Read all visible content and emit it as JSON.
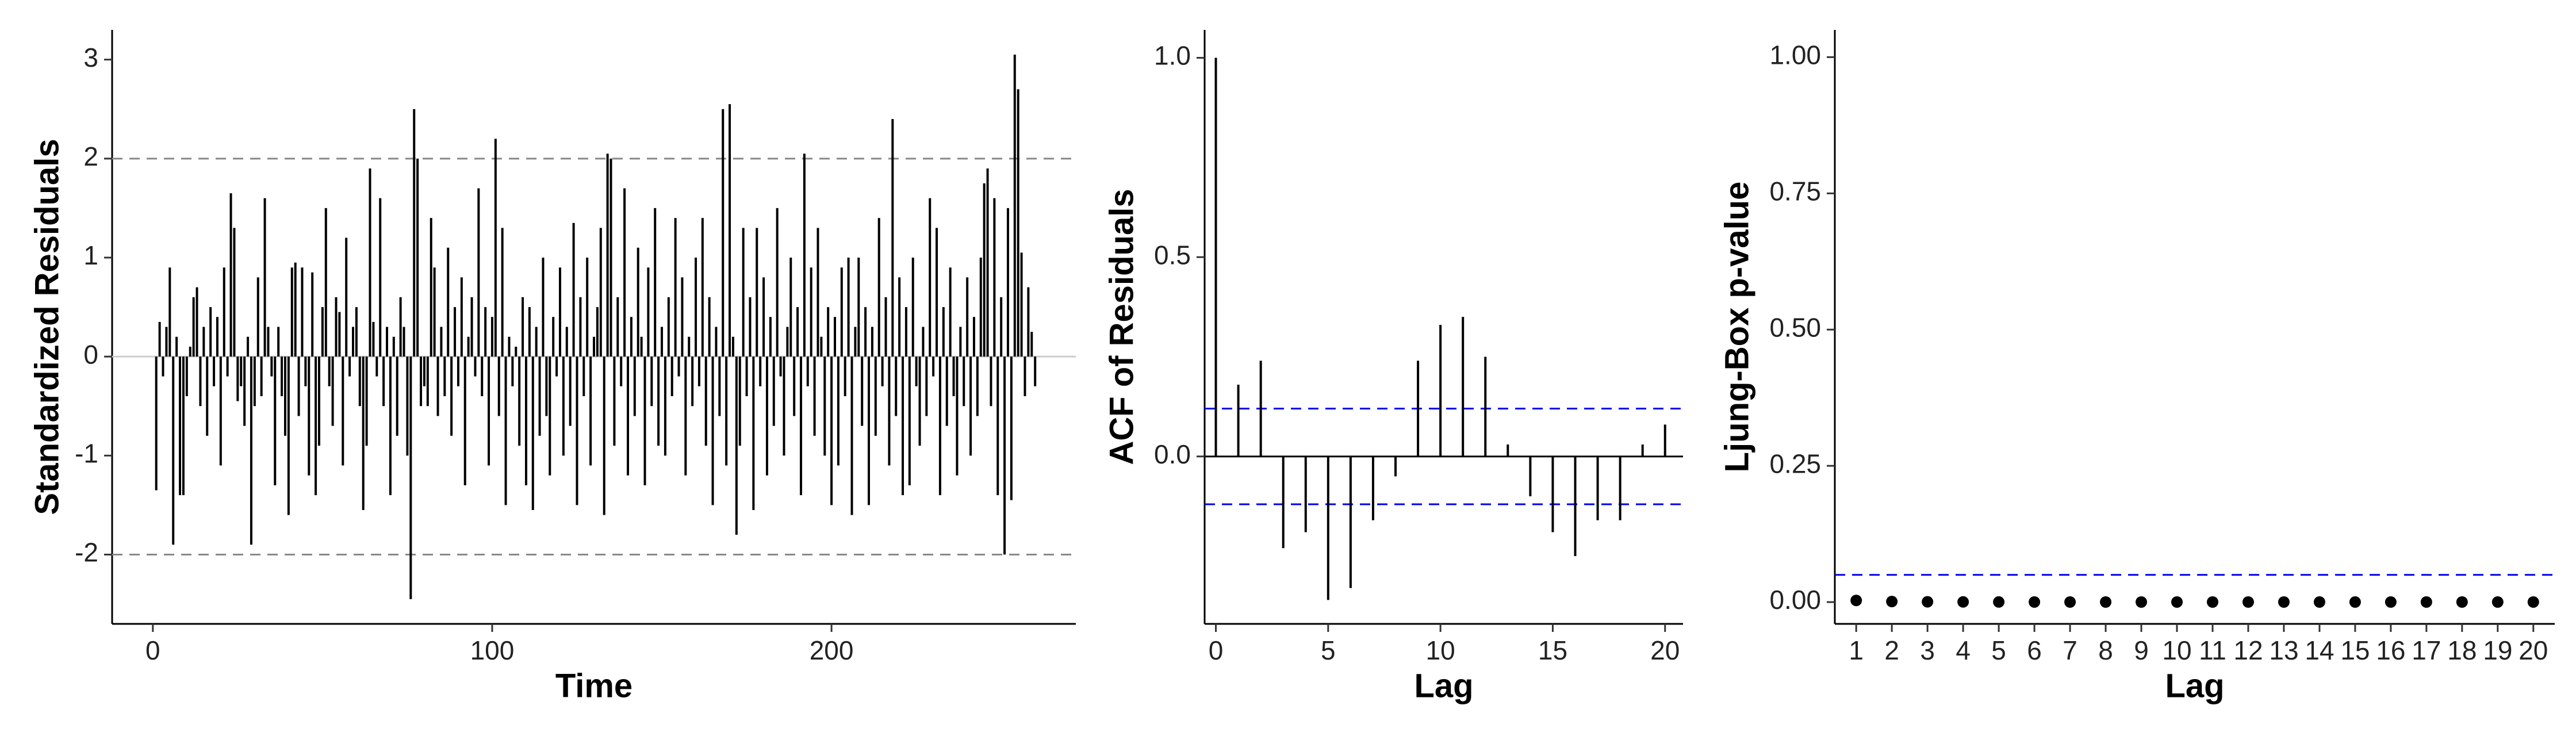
{
  "chart_data": [
    {
      "type": "needle",
      "x_label": "Time",
      "y_label": "Standardized Residuals",
      "x": [
        1,
        2,
        3,
        4,
        5,
        6,
        7,
        8,
        9,
        10,
        11,
        12,
        13,
        14,
        15,
        16,
        17,
        18,
        19,
        20,
        21,
        22,
        23,
        24,
        25,
        26,
        27,
        28,
        29,
        30,
        31,
        32,
        33,
        34,
        35,
        36,
        37,
        38,
        39,
        40,
        41,
        42,
        43,
        44,
        45,
        46,
        47,
        48,
        49,
        50,
        51,
        52,
        53,
        54,
        55,
        56,
        57,
        58,
        59,
        60,
        61,
        62,
        63,
        64,
        65,
        66,
        67,
        68,
        69,
        70,
        71,
        72,
        73,
        74,
        75,
        76,
        77,
        78,
        79,
        80,
        81,
        82,
        83,
        84,
        85,
        86,
        87,
        88,
        89,
        90,
        91,
        92,
        93,
        94,
        95,
        96,
        97,
        98,
        99,
        100,
        101,
        102,
        103,
        104,
        105,
        106,
        107,
        108,
        109,
        110,
        111,
        112,
        113,
        114,
        115,
        116,
        117,
        118,
        119,
        120,
        121,
        122,
        123,
        124,
        125,
        126,
        127,
        128,
        129,
        130,
        131,
        132,
        133,
        134,
        135,
        136,
        137,
        138,
        139,
        140,
        141,
        142,
        143,
        144,
        145,
        146,
        147,
        148,
        149,
        150,
        151,
        152,
        153,
        154,
        155,
        156,
        157,
        158,
        159,
        160,
        161,
        162,
        163,
        164,
        165,
        166,
        167,
        168,
        169,
        170,
        171,
        172,
        173,
        174,
        175,
        176,
        177,
        178,
        179,
        180,
        181,
        182,
        183,
        184,
        185,
        186,
        187,
        188,
        189,
        190,
        191,
        192,
        193,
        194,
        195,
        196,
        197,
        198,
        199,
        200,
        201,
        202,
        203,
        204,
        205,
        206,
        207,
        208,
        209,
        210,
        211,
        212,
        213,
        214,
        215,
        216,
        217,
        218,
        219,
        220,
        221,
        222,
        223,
        224,
        225,
        226,
        227,
        228,
        229,
        230,
        231,
        232,
        233,
        234,
        235,
        236,
        237,
        238,
        239,
        240,
        241,
        242,
        243,
        244,
        245,
        246,
        247,
        248,
        249,
        250,
        251,
        252,
        253,
        254,
        255,
        256,
        257,
        258,
        259,
        260
      ],
      "values": [
        -1.35,
        0.35,
        -0.2,
        0.3,
        0.9,
        -1.9,
        0.2,
        -1.4,
        -1.4,
        -0.4,
        0.1,
        0.6,
        0.7,
        -0.5,
        0.3,
        -0.8,
        0.5,
        -0.3,
        0.4,
        -1.1,
        0.9,
        -0.2,
        1.65,
        1.3,
        -0.45,
        -0.3,
        -0.7,
        0.2,
        -1.9,
        -0.5,
        0.8,
        -0.4,
        1.6,
        0.3,
        -0.2,
        -1.3,
        0.3,
        -0.4,
        -0.8,
        -1.6,
        0.9,
        0.95,
        -0.6,
        0.9,
        -0.3,
        -1.2,
        0.85,
        -1.4,
        -0.9,
        0.5,
        1.5,
        -0.3,
        -0.7,
        0.6,
        0.45,
        -1.1,
        1.2,
        -0.2,
        0.3,
        0.5,
        -0.5,
        -1.55,
        -0.9,
        1.9,
        0.35,
        -0.2,
        1.6,
        -0.5,
        0.3,
        -1.4,
        0.2,
        -0.8,
        0.6,
        0.3,
        -1.0,
        -2.45,
        2.5,
        2.0,
        -0.5,
        -0.3,
        -0.5,
        1.4,
        0.9,
        -0.6,
        0.3,
        -0.4,
        1.1,
        -0.8,
        0.5,
        -0.3,
        0.8,
        -1.3,
        0.2,
        0.6,
        -0.2,
        1.7,
        -0.4,
        0.5,
        -1.1,
        0.4,
        2.2,
        -0.6,
        1.3,
        -1.5,
        0.2,
        -0.3,
        0.1,
        -0.9,
        0.6,
        -1.3,
        0.5,
        -1.55,
        0.3,
        -0.8,
        1.0,
        -0.6,
        -1.2,
        0.4,
        -0.2,
        0.9,
        -1.0,
        0.3,
        -0.7,
        1.35,
        -1.5,
        0.6,
        -0.4,
        1.0,
        -1.1,
        0.2,
        0.5,
        1.3,
        -1.6,
        2.05,
        2.0,
        -0.9,
        0.6,
        -0.3,
        1.7,
        -1.2,
        0.4,
        -0.6,
        1.1,
        0.2,
        -1.3,
        0.9,
        -0.5,
        1.5,
        -0.9,
        0.3,
        -1.0,
        0.6,
        -0.4,
        1.4,
        -0.2,
        0.8,
        -1.2,
        0.2,
        -0.5,
        1.0,
        -0.3,
        1.4,
        -0.9,
        0.6,
        -1.5,
        0.3,
        -0.6,
        2.5,
        -1.1,
        2.55,
        0.2,
        -1.8,
        -0.9,
        1.3,
        -0.4,
        0.6,
        -1.55,
        1.3,
        -0.3,
        0.8,
        -1.2,
        0.4,
        -0.7,
        1.5,
        -0.2,
        -1.0,
        0.3,
        1.0,
        -0.6,
        0.5,
        -1.4,
        2.05,
        -0.3,
        0.9,
        -0.8,
        1.3,
        0.2,
        -1.0,
        0.5,
        -1.5,
        0.4,
        -1.1,
        0.9,
        -0.4,
        1.0,
        -1.6,
        0.3,
        1.0,
        -0.7,
        0.5,
        -1.5,
        0.3,
        -0.8,
        1.4,
        -0.3,
        0.6,
        -1.1,
        2.4,
        -0.6,
        0.8,
        -1.4,
        0.5,
        -1.3,
        1.0,
        -0.3,
        -0.9,
        0.3,
        -0.6,
        1.6,
        -0.2,
        1.3,
        -1.4,
        0.5,
        -0.7,
        0.9,
        -0.4,
        -1.2,
        0.3,
        -0.5,
        0.8,
        -1.0,
        0.4,
        -0.6,
        1.0,
        1.75,
        1.9,
        -0.5,
        1.6,
        -1.4,
        0.6,
        -2.0,
        1.5,
        -1.45,
        3.05,
        2.7,
        1.05,
        -0.4,
        0.7,
        0.25,
        -0.3
      ],
      "color": "#000000",
      "xlim": [
        -12,
        272
      ],
      "ylim": [
        -2.7,
        3.3
      ],
      "xticks": [
        0,
        100,
        200
      ],
      "yticks": [
        -2,
        -1,
        0,
        1,
        2,
        3
      ],
      "zero_line_color": "#cccccc",
      "hlines": [
        2,
        -2
      ],
      "hline_color": "#888888"
    },
    {
      "type": "needle",
      "x_label": "Lag",
      "y_label": "ACF of Residuals",
      "x": [
        0,
        1,
        2,
        3,
        4,
        5,
        6,
        7,
        8,
        9,
        10,
        11,
        12,
        13,
        14,
        15,
        16,
        17,
        18,
        19,
        20
      ],
      "values": [
        1.0,
        0.18,
        0.24,
        -0.23,
        -0.19,
        -0.36,
        -0.33,
        -0.16,
        -0.05,
        0.24,
        0.33,
        0.35,
        0.25,
        0.03,
        -0.1,
        -0.19,
        -0.25,
        -0.16,
        -0.16,
        0.03,
        0.08
      ],
      "color": "#000000",
      "xlim": [
        -0.5,
        20.8
      ],
      "ylim": [
        -0.42,
        1.07
      ],
      "xticks": [
        0,
        5,
        10,
        15,
        20
      ],
      "yticks": [
        {
          "value": 0,
          "label": "0.0"
        },
        {
          "value": 0.5,
          "label": "0.5"
        },
        {
          "value": 1,
          "label": "1.0"
        }
      ],
      "zero_line_color": "#000000",
      "hlines": [
        0.12,
        -0.12
      ],
      "hline_color": "#0000ee"
    },
    {
      "type": "dot",
      "x_label": "Lag",
      "y_label": "Ljung-Box p-value",
      "categories": [
        "1",
        "2",
        "3",
        "4",
        "5",
        "6",
        "7",
        "8",
        "9",
        "10",
        "11",
        "12",
        "13",
        "14",
        "15",
        "16",
        "17",
        "18",
        "19",
        "20"
      ],
      "values": [
        0.003,
        0.001,
        0.0005,
        0.0003,
        0.0002,
        0.0001,
        0.0001,
        0.0001,
        0.0001,
        0.0001,
        0.0001,
        0.0001,
        0.0001,
        0.0001,
        0.0001,
        0.0001,
        0.0001,
        0.0001,
        0.0001,
        0.0001
      ],
      "color": "#000000",
      "ylim": [
        -0.04,
        1.05
      ],
      "yticks": [
        {
          "value": 0,
          "label": "0.00"
        },
        {
          "value": 0.25,
          "label": "0.25"
        },
        {
          "value": 0.5,
          "label": "0.50"
        },
        {
          "value": 0.75,
          "label": "0.75"
        },
        {
          "value": 1,
          "label": "1.00"
        }
      ],
      "hlines": [
        0.05
      ],
      "hline_color": "#0000ee"
    }
  ]
}
